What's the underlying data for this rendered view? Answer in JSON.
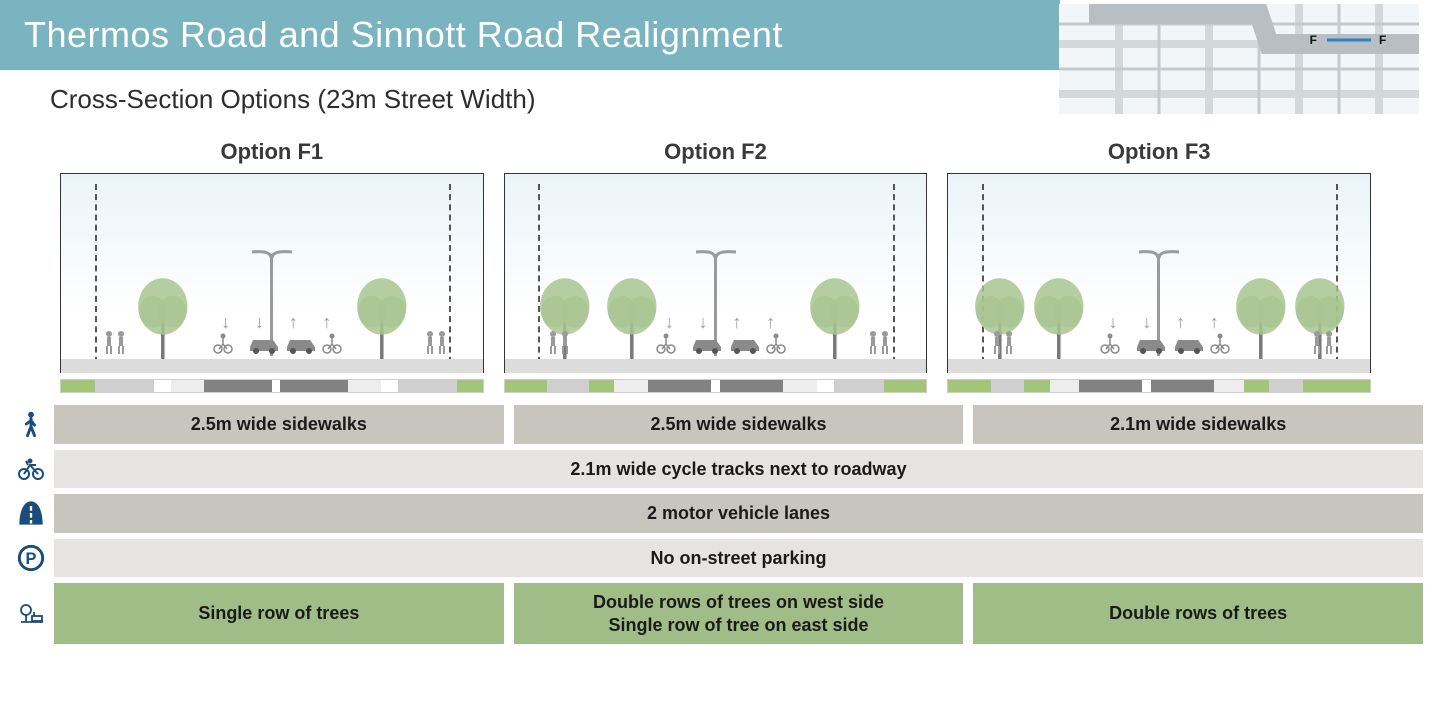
{
  "header": {
    "title": "Thermos Road and Sinnott Road Realignment",
    "subtitle": "Cross-Section Options (23m Street Width)",
    "title_bg": "#7ab4c1",
    "title_fg": "#ffffff"
  },
  "map": {
    "label_left": "F",
    "label_right": "F",
    "line_color": "#2a82c9",
    "road_color": "#d9dde0",
    "bg": "#f0f5f7"
  },
  "options": [
    {
      "title": "Option F1",
      "trees": "single",
      "tree_positions_pct": [
        24,
        76
      ],
      "plan_segments": [
        {
          "color": "#a3c57a",
          "w": 8
        },
        {
          "color": "#cfcfcf",
          "w": 14
        },
        {
          "color": "#ffffff",
          "w": 4
        },
        {
          "color": "#ededed",
          "w": 8
        },
        {
          "color": "#828282",
          "w": 16
        },
        {
          "color": "#ffffff",
          "w": 2
        },
        {
          "color": "#828282",
          "w": 16
        },
        {
          "color": "#ededed",
          "w": 8
        },
        {
          "color": "#ffffff",
          "w": 4
        },
        {
          "color": "#cfcfcf",
          "w": 14
        },
        {
          "color": "#a3c57a",
          "w": 6
        }
      ]
    },
    {
      "title": "Option F2",
      "trees": "double-west-single-east",
      "tree_positions_pct": [
        14,
        30,
        78
      ],
      "plan_segments": [
        {
          "color": "#a3c57a",
          "w": 10
        },
        {
          "color": "#cfcfcf",
          "w": 10
        },
        {
          "color": "#a3c57a",
          "w": 6
        },
        {
          "color": "#ededed",
          "w": 8
        },
        {
          "color": "#828282",
          "w": 15
        },
        {
          "color": "#ffffff",
          "w": 2
        },
        {
          "color": "#828282",
          "w": 15
        },
        {
          "color": "#ededed",
          "w": 8
        },
        {
          "color": "#ffffff",
          "w": 4
        },
        {
          "color": "#cfcfcf",
          "w": 12
        },
        {
          "color": "#a3c57a",
          "w": 10
        }
      ]
    },
    {
      "title": "Option F3",
      "trees": "double",
      "tree_positions_pct": [
        12,
        26,
        74,
        88
      ],
      "plan_segments": [
        {
          "color": "#a3c57a",
          "w": 10
        },
        {
          "color": "#cfcfcf",
          "w": 8
        },
        {
          "color": "#a3c57a",
          "w": 6
        },
        {
          "color": "#ededed",
          "w": 7
        },
        {
          "color": "#828282",
          "w": 15
        },
        {
          "color": "#ffffff",
          "w": 2
        },
        {
          "color": "#828282",
          "w": 15
        },
        {
          "color": "#ededed",
          "w": 7
        },
        {
          "color": "#a3c57a",
          "w": 6
        },
        {
          "color": "#cfcfcf",
          "w": 8
        },
        {
          "color": "#a3c57a",
          "w": 16
        }
      ]
    }
  ],
  "rows": [
    {
      "icon": "pedestrian",
      "bg": "c-dark",
      "span": "split",
      "cells": [
        "2.5m wide sidewalks",
        "2.5m wide sidewalks",
        "2.1m wide sidewalks"
      ]
    },
    {
      "icon": "bike",
      "bg": "c-light",
      "span": "full",
      "cells": [
        "2.1m wide cycle tracks next to roadway"
      ]
    },
    {
      "icon": "road",
      "bg": "c-dark",
      "span": "full",
      "cells": [
        "2 motor vehicle lanes"
      ]
    },
    {
      "icon": "parking",
      "bg": "c-light",
      "span": "full",
      "cells": [
        "No on-street parking"
      ]
    },
    {
      "icon": "trees",
      "bg": "c-green",
      "span": "split",
      "cells": [
        "Single row of trees",
        "Double rows of trees on west side\nSingle row of tree on east side",
        "Double rows of trees"
      ]
    }
  ],
  "colors": {
    "row_dark": "#c8c5bf",
    "row_light": "#e5e4e2",
    "row_green": "#a0bd87",
    "icon": "#1a4d7a",
    "tree_foliage": "#a8c490",
    "tree_trunk": "#7a7a7a"
  }
}
